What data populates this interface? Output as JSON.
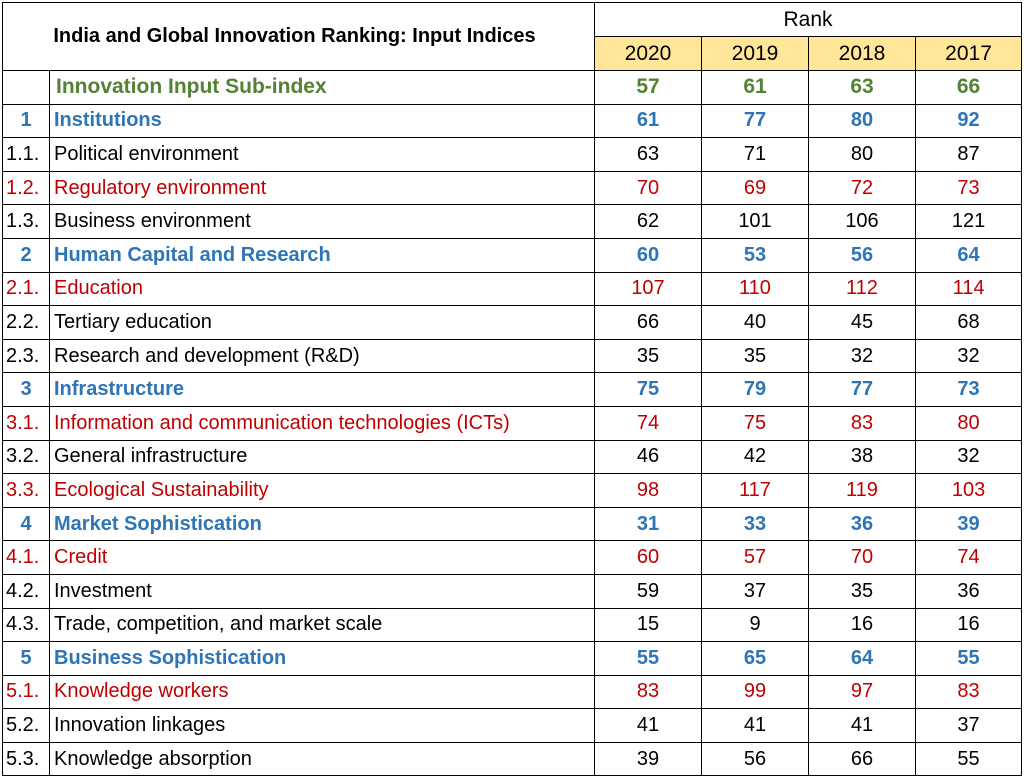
{
  "title": "India and Global Innovation Ranking: Input Indices",
  "rank_header": "Rank",
  "years": [
    "2020",
    "2019",
    "2018",
    "2017"
  ],
  "colors": {
    "green": "#548235",
    "blue": "#2E75B6",
    "red": "#C00000",
    "header_fill": "#FFE699"
  },
  "rows": [
    {
      "num": "",
      "label": "Innovation Input Sub-index",
      "style": "green",
      "values": [
        "57",
        "61",
        "63",
        "66"
      ]
    },
    {
      "num": "1",
      "label": "Institutions",
      "style": "blue",
      "values": [
        "61",
        "77",
        "80",
        "92"
      ]
    },
    {
      "num": "1.1.",
      "label": "Political environment",
      "style": "black",
      "values": [
        "63",
        "71",
        "80",
        "87"
      ]
    },
    {
      "num": "1.2.",
      "label": "Regulatory environment",
      "style": "red",
      "values": [
        "70",
        "69",
        "72",
        "73"
      ]
    },
    {
      "num": "1.3.",
      "label": "Business environment",
      "style": "black",
      "values": [
        "62",
        "101",
        "106",
        "121"
      ]
    },
    {
      "num": "2",
      "label": "Human Capital and Research",
      "style": "blue",
      "values": [
        "60",
        "53",
        "56",
        "64"
      ]
    },
    {
      "num": "2.1.",
      "label": "Education",
      "style": "red",
      "values": [
        "107",
        "110",
        "112",
        "114"
      ]
    },
    {
      "num": "2.2.",
      "label": "Tertiary education",
      "style": "black",
      "values": [
        "66",
        "40",
        "45",
        "68"
      ]
    },
    {
      "num": "2.3.",
      "label": "Research and development (R&D)",
      "style": "black",
      "values": [
        "35",
        "35",
        "32",
        "32"
      ]
    },
    {
      "num": "3",
      "label": "Infrastructure",
      "style": "blue",
      "values": [
        "75",
        "79",
        "77",
        "73"
      ]
    },
    {
      "num": "3.1.",
      "label": "Information and communication technologies (ICTs)",
      "style": "red",
      "values": [
        "74",
        "75",
        "83",
        "80"
      ]
    },
    {
      "num": "3.2.",
      "label": "General infrastructure",
      "style": "black",
      "values": [
        "46",
        "42",
        "38",
        "32"
      ]
    },
    {
      "num": "3.3.",
      "label": "Ecological Sustainability",
      "style": "red",
      "values": [
        "98",
        "117",
        "119",
        "103"
      ]
    },
    {
      "num": "4",
      "label": "Market Sophistication",
      "style": "blue",
      "values": [
        "31",
        "33",
        "36",
        "39"
      ]
    },
    {
      "num": "4.1.",
      "label": "Credit",
      "style": "red",
      "values": [
        "60",
        "57",
        "70",
        "74"
      ]
    },
    {
      "num": "4.2.",
      "label": "Investment",
      "style": "black",
      "values": [
        "59",
        "37",
        "35",
        "36"
      ]
    },
    {
      "num": "4.3.",
      "label": "Trade, competition, and market scale",
      "style": "black",
      "values": [
        "15",
        "9",
        "16",
        "16"
      ]
    },
    {
      "num": "5",
      "label": "Business Sophistication",
      "style": "blue",
      "values": [
        "55",
        "65",
        "64",
        "55"
      ]
    },
    {
      "num": "5.1.",
      "label": "Knowledge workers",
      "style": "red",
      "values": [
        "83",
        "99",
        "97",
        "83"
      ]
    },
    {
      "num": "5.2.",
      "label": "Innovation linkages",
      "style": "black",
      "values": [
        "41",
        "41",
        "41",
        "37"
      ]
    },
    {
      "num": "5.3.",
      "label": "Knowledge absorption",
      "style": "black",
      "values": [
        "39",
        "56",
        "66",
        "55"
      ]
    }
  ]
}
